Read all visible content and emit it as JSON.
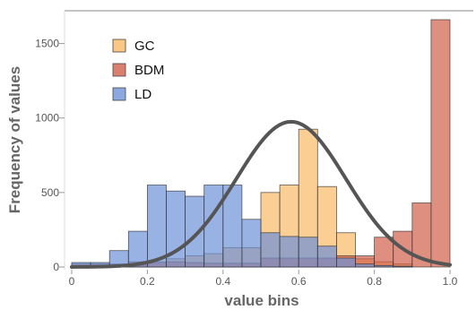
{
  "chart_data": {
    "type": "bar",
    "title": "",
    "xlabel": "value bins",
    "ylabel": "Frequency of values",
    "xlim": [
      0,
      1.05
    ],
    "ylim": [
      0,
      1720
    ],
    "x_ticks": [
      "0",
      "0.2",
      "0.4",
      "0.6",
      "0.8",
      "1.0"
    ],
    "x_tick_values": [
      0,
      0.2,
      0.4,
      0.6,
      0.8,
      1.0
    ],
    "y_ticks": [
      "0",
      "500",
      "1000",
      "1500"
    ],
    "y_tick_values": [
      0,
      500,
      1000,
      1500
    ],
    "grid": false,
    "legend_position": "top-left",
    "bin_width": 0.05,
    "bin_starts": [
      0.0,
      0.05,
      0.1,
      0.15,
      0.2,
      0.25,
      0.3,
      0.35,
      0.4,
      0.45,
      0.5,
      0.55,
      0.6,
      0.65,
      0.7,
      0.75,
      0.8,
      0.85,
      0.9,
      0.95
    ],
    "series": [
      {
        "name": "GC",
        "color": "#F9B966",
        "opacity": 0.7,
        "values": [
          0,
          0,
          0,
          10,
          25,
          55,
          75,
          90,
          130,
          130,
          500,
          550,
          925,
          540,
          230,
          55,
          35,
          20,
          0,
          0
        ]
      },
      {
        "name": "BDM",
        "color": "#D2604A",
        "opacity": 0.7,
        "values": [
          20,
          20,
          20,
          35,
          35,
          35,
          30,
          25,
          25,
          25,
          60,
          60,
          60,
          60,
          75,
          75,
          200,
          240,
          430,
          1660
        ]
      },
      {
        "name": "LD",
        "color": "#6E92D8",
        "opacity": 0.7,
        "values": [
          30,
          30,
          110,
          240,
          550,
          510,
          475,
          550,
          550,
          320,
          230,
          205,
          200,
          140,
          60,
          20,
          10,
          5,
          0,
          0
        ]
      }
    ],
    "fit_curve": {
      "color": "#555555",
      "peak_x": 0.58,
      "peak_y": 975,
      "sigma": 0.145
    }
  }
}
